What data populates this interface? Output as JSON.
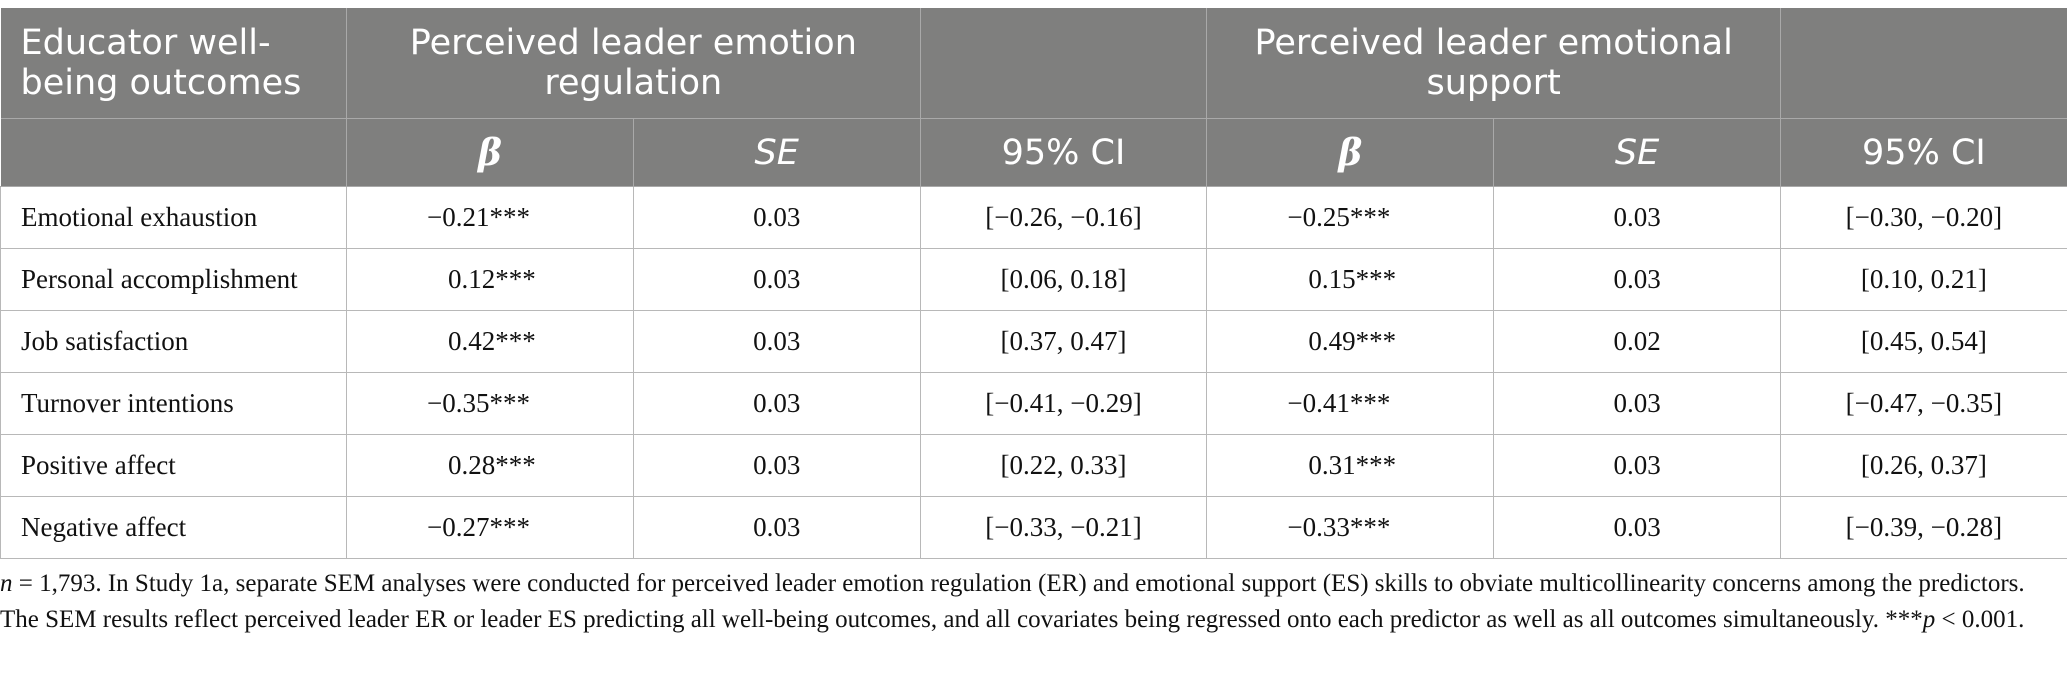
{
  "table": {
    "header_row1": {
      "outcomes_label": "Educator well-being outcomes",
      "group_er": "Perceived leader emotion regulation",
      "group_es": "Perceived leader emotional support"
    },
    "subheaders": {
      "er": [
        "β",
        "SE",
        "95% CI"
      ],
      "es": [
        "β",
        "SE",
        "95% CI"
      ]
    },
    "rows": [
      {
        "outcome": "Emotional exhaustion",
        "er_beta": "−0.21***",
        "er_se": "0.03",
        "er_ci": "[−0.26, −0.16]",
        "es_beta": "−0.25***",
        "es_se": "0.03",
        "es_ci": "[−0.30, −0.20]"
      },
      {
        "outcome": "Personal accomplishment",
        "er_beta": "0.12***",
        "er_se": "0.03",
        "er_ci": "[0.06, 0.18]",
        "es_beta": "0.15***",
        "es_se": "0.03",
        "es_ci": "[0.10, 0.21]"
      },
      {
        "outcome": "Job satisfaction",
        "er_beta": "0.42***",
        "er_se": "0.03",
        "er_ci": "[0.37, 0.47]",
        "es_beta": "0.49***",
        "es_se": "0.02",
        "es_ci": "[0.45, 0.54]"
      },
      {
        "outcome": "Turnover intentions",
        "er_beta": "−0.35***",
        "er_se": "0.03",
        "er_ci": "[−0.41, −0.29]",
        "es_beta": "−0.41***",
        "es_se": "0.03",
        "es_ci": "[−0.47, −0.35]"
      },
      {
        "outcome": "Positive affect",
        "er_beta": "0.28***",
        "er_se": "0.03",
        "er_ci": "[0.22, 0.33]",
        "es_beta": "0.31***",
        "es_se": "0.03",
        "es_ci": "[0.26, 0.37]"
      },
      {
        "outcome": "Negative affect",
        "er_beta": "−0.27***",
        "er_se": "0.03",
        "er_ci": "[−0.33, −0.21]",
        "es_beta": "−0.33***",
        "es_se": "0.03",
        "es_ci": "[−0.39, −0.28]"
      }
    ]
  },
  "note": {
    "n_symbol": "n",
    "n_text": " = 1,793. In Study 1a, separate SEM analyses were conducted for perceived leader emotion regulation (ER) and emotional support (ES) skills to obviate multicollinearity concerns among the predictors. The SEM results reflect perceived leader ER or leader ES predicting all well-being outcomes, and all covariates being regressed onto each predictor as well as all outcomes simultaneously. ***",
    "p_symbol": "p",
    "p_text": " < 0.001."
  }
}
